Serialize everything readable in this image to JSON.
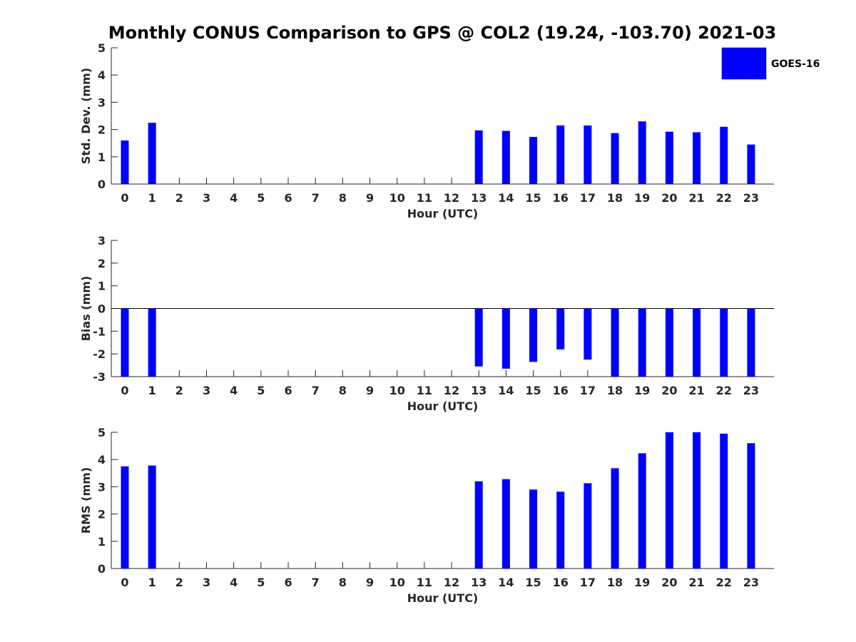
{
  "chart_data": {
    "title": "Monthly CONUS Comparison to GPS @ COL2 (19.24, -103.70) 2021-03",
    "type": "bar",
    "series_name": "GOES-16",
    "legend_placement": "top-right",
    "bar_color": "#0000ff",
    "categories": [
      "0",
      "1",
      "2",
      "3",
      "4",
      "5",
      "6",
      "7",
      "8",
      "9",
      "10",
      "11",
      "12",
      "13",
      "14",
      "15",
      "16",
      "17",
      "18",
      "19",
      "20",
      "21",
      "22",
      "23"
    ],
    "panels": [
      {
        "type": "bar",
        "ylabel": "Std. Dev. (mm)",
        "xlabel": "Hour (UTC)",
        "ylim": [
          0,
          5
        ],
        "yticks": [
          "0",
          "1",
          "2",
          "3",
          "4",
          "5"
        ],
        "values": [
          1.6,
          2.25,
          null,
          null,
          null,
          null,
          null,
          null,
          null,
          null,
          null,
          null,
          null,
          1.97,
          1.95,
          1.73,
          2.15,
          2.15,
          1.87,
          2.3,
          1.92,
          1.9,
          2.1,
          1.45
        ]
      },
      {
        "type": "bar",
        "ylabel": "Bias (mm)",
        "xlabel": "Hour (UTC)",
        "ylim": [
          -3,
          3
        ],
        "yticks": [
          "-3",
          "-2",
          "-1",
          "0",
          "1",
          "2",
          "3"
        ],
        "values": [
          -3.0,
          -3.0,
          null,
          null,
          null,
          null,
          null,
          null,
          null,
          null,
          null,
          null,
          null,
          -2.55,
          -2.65,
          -2.35,
          -1.8,
          -2.25,
          -3.0,
          -3.0,
          -3.0,
          -3.0,
          -3.0,
          -3.0
        ]
      },
      {
        "type": "bar",
        "ylabel": "RMS (mm)",
        "xlabel": "Hour (UTC)",
        "ylim": [
          0,
          5
        ],
        "yticks": [
          "0",
          "1",
          "2",
          "3",
          "4",
          "5"
        ],
        "values": [
          3.75,
          3.78,
          null,
          null,
          null,
          null,
          null,
          null,
          null,
          null,
          null,
          null,
          null,
          3.2,
          3.28,
          2.9,
          2.82,
          3.13,
          3.68,
          4.23,
          5.0,
          5.0,
          4.95,
          4.6
        ]
      }
    ]
  }
}
